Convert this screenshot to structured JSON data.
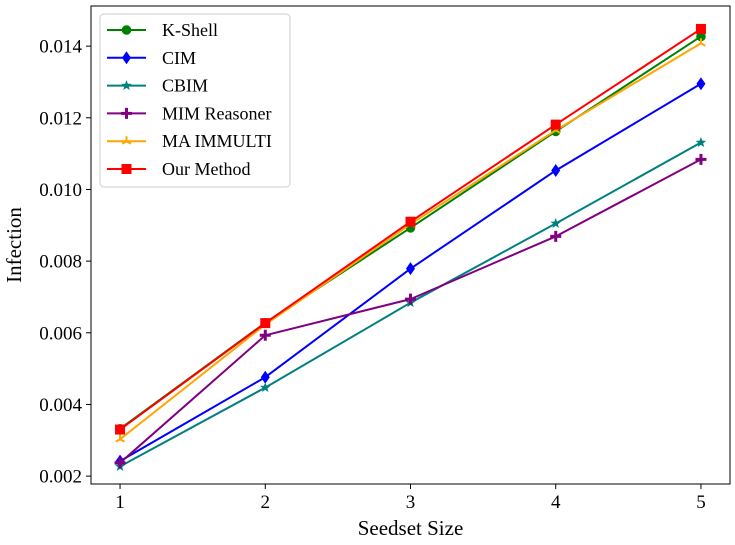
{
  "chart_data": {
    "type": "line",
    "title": "",
    "xlabel": "Seedset Size",
    "ylabel": "Infection",
    "x": [
      1,
      2,
      3,
      4,
      5
    ],
    "xlim": [
      0.8,
      5.2
    ],
    "ylim": [
      0.00178,
      0.01512
    ],
    "xticks": [
      "1",
      "2",
      "3",
      "4",
      "5"
    ],
    "yticks": [
      "0.002",
      "0.004",
      "0.006",
      "0.008",
      "0.010",
      "0.012",
      "0.014"
    ],
    "grid": false,
    "legend_position": "top-left",
    "series": [
      {
        "name": "K-Shell",
        "color": "#008000",
        "marker": "circle",
        "values": [
          0.00332,
          0.00628,
          0.00893,
          0.01162,
          0.01427
        ]
      },
      {
        "name": "CIM",
        "color": "#0000ff",
        "marker": "diamond",
        "values": [
          0.00242,
          0.00476,
          0.00779,
          0.01053,
          0.01295
        ]
      },
      {
        "name": "CBIM",
        "color": "#008080",
        "marker": "star",
        "values": [
          0.00227,
          0.00447,
          0.00684,
          0.00905,
          0.01131
        ]
      },
      {
        "name": "MIM Reasoner",
        "color": "#800080",
        "marker": "plus",
        "values": [
          0.00237,
          0.00593,
          0.00694,
          0.00869,
          0.01084
        ]
      },
      {
        "name": "MA IMMULTI",
        "color": "#ffa500",
        "marker": "tri",
        "values": [
          0.00303,
          0.00623,
          0.00903,
          0.01165,
          0.01408
        ]
      },
      {
        "name": "Our Method",
        "color": "#ff0000",
        "marker": "square",
        "values": [
          0.0033,
          0.00627,
          0.0091,
          0.01181,
          0.01448
        ]
      }
    ]
  }
}
